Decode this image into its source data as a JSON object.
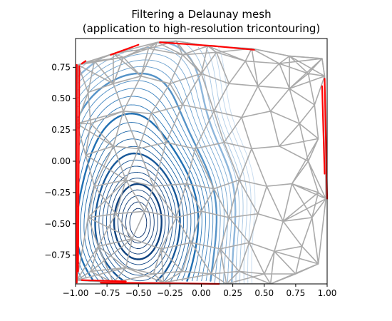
{
  "chart_data": {
    "type": "contour",
    "title": "Filtering a Delaunay mesh",
    "subtitle": "(application to high-resolution tricontouring)",
    "xlabel": "",
    "ylabel": "",
    "xlim": [
      -1.0,
      1.0
    ],
    "ylim": [
      -0.98,
      0.98
    ],
    "xticks": [
      "−1.00",
      "−0.75",
      "−0.50",
      "−0.25",
      "0.00",
      "0.25",
      "0.50",
      "0.75",
      "1.00"
    ],
    "yticks": [
      "−0.75",
      "−0.50",
      "−0.25",
      "0.00",
      "0.25",
      "0.50",
      "0.75"
    ],
    "xtick_values": [
      -1.0,
      -0.75,
      -0.5,
      -0.25,
      0.0,
      0.25,
      0.5,
      0.75,
      1.0
    ],
    "ytick_values": [
      -0.75,
      -0.5,
      -0.25,
      0.0,
      0.25,
      0.5,
      0.75
    ],
    "grid": false,
    "colormap": "Blues",
    "colors": {
      "mesh": "#aaaaaa",
      "masked_edges": "#ff0000",
      "contour_dark": "#08306b",
      "contour_light": "#c6dbef"
    },
    "minimum_center": [
      -0.5,
      -0.5
    ],
    "contour_levels": [
      0.05,
      0.1,
      0.15,
      0.2,
      0.25,
      0.3,
      0.35,
      0.4,
      0.45,
      0.5,
      0.55,
      0.6,
      0.65,
      0.7,
      0.75,
      0.8,
      0.85,
      0.9,
      0.95,
      1.0,
      1.05,
      1.1,
      1.15,
      1.2,
      1.25,
      1.3,
      1.35,
      1.4,
      1.45,
      1.5
    ],
    "emphasized_levels": [
      0.25,
      0.5,
      0.75,
      1.0,
      1.25
    ],
    "hull": [
      [
        -0.98,
        0.77
      ],
      [
        -0.7,
        0.86
      ],
      [
        -0.35,
        0.95
      ],
      [
        -0.2,
        0.96
      ],
      [
        0.05,
        0.92
      ],
      [
        0.4,
        0.9
      ],
      [
        0.7,
        0.84
      ],
      [
        0.96,
        0.82
      ],
      [
        0.98,
        0.68
      ],
      [
        0.99,
        -0.3
      ],
      [
        0.93,
        -0.82
      ],
      [
        0.55,
        -0.98
      ],
      [
        0.2,
        -0.98
      ],
      [
        -0.3,
        -0.97
      ],
      [
        -0.7,
        -0.97
      ],
      [
        -0.99,
        -0.95
      ],
      [
        -0.99,
        0.3
      ],
      [
        -0.98,
        0.77
      ]
    ],
    "masked_edges": [
      [
        [
          -0.99,
          0.77
        ],
        [
          -0.99,
          -0.97
        ]
      ],
      [
        [
          -0.97,
          0.76
        ],
        [
          -0.98,
          -0.88
        ]
      ],
      [
        [
          -0.92,
          0.8
        ],
        [
          -0.95,
          0.78
        ]
      ],
      [
        [
          -0.72,
          0.85
        ],
        [
          -0.5,
          0.93
        ]
      ],
      [
        [
          -0.33,
          0.95
        ],
        [
          0.1,
          0.92
        ]
      ],
      [
        [
          0.1,
          0.92
        ],
        [
          0.42,
          0.89
        ]
      ],
      [
        [
          0.98,
          0.66
        ],
        [
          1.0,
          -0.3
        ]
      ],
      [
        [
          0.96,
          0.6
        ],
        [
          0.98,
          -0.1
        ]
      ],
      [
        [
          -0.8,
          -0.97
        ],
        [
          0.14,
          -0.98
        ]
      ],
      [
        [
          -0.95,
          -0.95
        ],
        [
          -0.6,
          -0.96
        ]
      ]
    ],
    "mesh_points": [
      [
        -0.85,
        0.8
      ],
      [
        -0.62,
        0.83
      ],
      [
        -0.42,
        0.9
      ],
      [
        -0.15,
        0.85
      ],
      [
        0.12,
        0.87
      ],
      [
        0.35,
        0.8
      ],
      [
        0.62,
        0.78
      ],
      [
        0.85,
        0.7
      ],
      [
        -0.9,
        0.55
      ],
      [
        -0.7,
        0.62
      ],
      [
        -0.48,
        0.68
      ],
      [
        -0.25,
        0.62
      ],
      [
        0.0,
        0.7
      ],
      [
        0.22,
        0.62
      ],
      [
        0.45,
        0.6
      ],
      [
        0.7,
        0.58
      ],
      [
        0.9,
        0.45
      ],
      [
        -0.88,
        0.3
      ],
      [
        -0.62,
        0.4
      ],
      [
        -0.4,
        0.38
      ],
      [
        -0.15,
        0.45
      ],
      [
        0.1,
        0.4
      ],
      [
        0.32,
        0.35
      ],
      [
        0.55,
        0.4
      ],
      [
        0.78,
        0.3
      ],
      [
        0.93,
        0.18
      ],
      [
        -0.92,
        0.05
      ],
      [
        -0.7,
        0.12
      ],
      [
        -0.5,
        0.1
      ],
      [
        -0.28,
        0.15
      ],
      [
        -0.05,
        0.1
      ],
      [
        0.18,
        0.15
      ],
      [
        0.4,
        0.1
      ],
      [
        0.62,
        0.12
      ],
      [
        0.85,
        0.0
      ],
      [
        -0.85,
        -0.2
      ],
      [
        -0.6,
        -0.15
      ],
      [
        -0.38,
        -0.2
      ],
      [
        -0.12,
        -0.18
      ],
      [
        0.1,
        -0.22
      ],
      [
        0.3,
        -0.15
      ],
      [
        0.52,
        -0.2
      ],
      [
        0.72,
        -0.18
      ],
      [
        0.93,
        -0.25
      ],
      [
        -0.9,
        -0.45
      ],
      [
        -0.68,
        -0.42
      ],
      [
        -0.45,
        -0.4
      ],
      [
        -0.2,
        -0.45
      ],
      [
        0.0,
        -0.4
      ],
      [
        0.22,
        -0.45
      ],
      [
        0.45,
        -0.42
      ],
      [
        0.65,
        -0.48
      ],
      [
        0.88,
        -0.45
      ],
      [
        -0.82,
        -0.68
      ],
      [
        -0.55,
        -0.62
      ],
      [
        -0.32,
        -0.7
      ],
      [
        -0.08,
        -0.65
      ],
      [
        0.15,
        -0.7
      ],
      [
        0.38,
        -0.65
      ],
      [
        0.58,
        -0.72
      ],
      [
        0.8,
        -0.68
      ],
      [
        -0.88,
        -0.88
      ],
      [
        -0.6,
        -0.85
      ],
      [
        -0.38,
        -0.9
      ],
      [
        -0.15,
        -0.88
      ],
      [
        0.08,
        -0.9
      ],
      [
        0.3,
        -0.88
      ],
      [
        0.5,
        -0.9
      ],
      [
        0.75,
        -0.9
      ]
    ]
  }
}
